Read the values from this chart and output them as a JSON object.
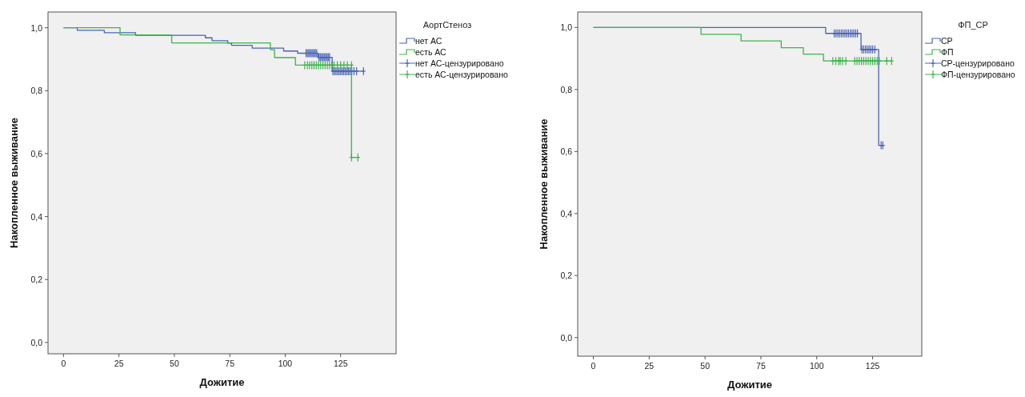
{
  "chart_data": [
    {
      "type": "step",
      "xlabel": "Дожитие",
      "ylabel": "Накопленное выживание",
      "legend_title": "АортСтеноз",
      "legend": "right",
      "grid": false,
      "line_style": "solid",
      "xlim": [
        -7,
        150
      ],
      "ylim": [
        -0.036,
        1.05
      ],
      "xticks": [
        0,
        25,
        50,
        75,
        100,
        125
      ],
      "yticks": [
        {
          "value": 0,
          "label": "0,0"
        },
        {
          "value": 0.2,
          "label": "0,2"
        },
        {
          "value": 0.4,
          "label": "0,4"
        },
        {
          "value": 0.6,
          "label": "0,6"
        },
        {
          "value": 0.8,
          "label": "0,8"
        },
        {
          "value": 1,
          "label": "1,0"
        }
      ],
      "series": [
        {
          "name": "нет АС",
          "type": "step",
          "color": "#4a63b5",
          "x": [
            0,
            6.2,
            18.4,
            32.5,
            64,
            67,
            74.1,
            75.8,
            85.1,
            99.3,
            105.6,
            114.8,
            121.2,
            135.3
          ],
          "values": [
            1,
            0.992,
            0.984,
            0.976,
            0.968,
            0.959,
            0.951,
            0.944,
            0.935,
            0.926,
            0.919,
            0.906,
            0.862,
            0.862
          ]
        },
        {
          "name": "есть АС",
          "type": "step",
          "color": "#3cb44b",
          "x": [
            0,
            25.5,
            48.8,
            93.3,
            95.2,
            104.6,
            129.9,
            132.8
          ],
          "values": [
            1,
            0.977,
            0.952,
            0.93,
            0.905,
            0.881,
            0.588,
            0.588
          ]
        },
        {
          "name": "нет АС-цензурировано",
          "type": "scatter",
          "marker": "cross",
          "color": "#4a63b5",
          "x": [
            109.4,
            110,
            110.6,
            111.2,
            111.8,
            112.4,
            113,
            113.6,
            114.2,
            115.2,
            115.8,
            116.4,
            117,
            117.6,
            118.2,
            118.8,
            119.4,
            120,
            121.5,
            122.2,
            122.9,
            123.6,
            124.3,
            125,
            125.7,
            126.4,
            127.1,
            127.8,
            128.5,
            129.2,
            130,
            131,
            132.2,
            135.3
          ],
          "values": [
            0.919,
            0.919,
            0.919,
            0.919,
            0.919,
            0.919,
            0.919,
            0.919,
            0.919,
            0.906,
            0.906,
            0.906,
            0.906,
            0.906,
            0.906,
            0.906,
            0.906,
            0.906,
            0.862,
            0.862,
            0.862,
            0.862,
            0.862,
            0.862,
            0.862,
            0.862,
            0.862,
            0.862,
            0.862,
            0.862,
            0.862,
            0.862,
            0.862,
            0.862
          ]
        },
        {
          "name": "есть АС-цензурировано",
          "type": "scatter",
          "marker": "cross",
          "color": "#3cb44b",
          "x": [
            108.8,
            110,
            111,
            112,
            113,
            114,
            115,
            116,
            117,
            118,
            119,
            120,
            121,
            122,
            123.5,
            125,
            126.5,
            128,
            129.9,
            129.9,
            132.8
          ],
          "values": [
            0.881,
            0.881,
            0.881,
            0.881,
            0.881,
            0.881,
            0.881,
            0.881,
            0.881,
            0.881,
            0.881,
            0.881,
            0.881,
            0.881,
            0.881,
            0.881,
            0.881,
            0.881,
            0.881,
            0.588,
            0.588
          ]
        }
      ]
    },
    {
      "type": "step",
      "xlabel": "Дожитие",
      "ylabel": "Накопленное выживание",
      "legend_title": "ФП_СР",
      "legend": "right",
      "grid": false,
      "line_style": "solid",
      "xlim": [
        -7,
        147
      ],
      "ylim": [
        -0.06,
        1.05
      ],
      "xticks": [
        0,
        25,
        50,
        75,
        100,
        125
      ],
      "yticks": [
        {
          "value": 0,
          "label": "0,0"
        },
        {
          "value": 0.2,
          "label": "0,2"
        },
        {
          "value": 0.4,
          "label": "0,4"
        },
        {
          "value": 0.6,
          "label": "0,6"
        },
        {
          "value": 0.8,
          "label": "0,8"
        },
        {
          "value": 1,
          "label": "1,0"
        }
      ],
      "series": [
        {
          "name": "СР",
          "type": "step",
          "color": "#4a63b5",
          "x": [
            0,
            104,
            119.8,
            127.7,
            129.6
          ],
          "values": [
            1,
            0.981,
            0.929,
            0.62,
            0.62
          ]
        },
        {
          "name": "ФП",
          "type": "step",
          "color": "#3cb44b",
          "x": [
            0,
            48.2,
            66.1,
            84.1,
            94,
            103,
            133.5
          ],
          "values": [
            1,
            0.978,
            0.957,
            0.935,
            0.914,
            0.892,
            0.892
          ]
        },
        {
          "name": "СР-цензурировано",
          "type": "scatter",
          "marker": "cross",
          "color": "#4a63b5",
          "x": [
            107.8,
            108.6,
            109.4,
            110.2,
            111,
            111.8,
            112.6,
            113.4,
            114.2,
            115,
            115.8,
            116.6,
            117.4,
            118.2,
            120.2,
            121,
            121.8,
            122.6,
            123.4,
            124.2,
            125,
            126,
            128.8,
            129.6
          ],
          "values": [
            0.981,
            0.981,
            0.981,
            0.981,
            0.981,
            0.981,
            0.981,
            0.981,
            0.981,
            0.981,
            0.981,
            0.981,
            0.981,
            0.981,
            0.929,
            0.929,
            0.929,
            0.929,
            0.929,
            0.929,
            0.929,
            0.929,
            0.62,
            0.62
          ]
        },
        {
          "name": "ФП-цензурировано",
          "type": "scatter",
          "marker": "cross",
          "color": "#3cb44b",
          "x": [
            107.2,
            108.5,
            109.8,
            110.5,
            111.5,
            113,
            117,
            118,
            119,
            120,
            121,
            122,
            123,
            124,
            125,
            126,
            127,
            128,
            131.3,
            133.5
          ],
          "values": [
            0.892,
            0.892,
            0.892,
            0.892,
            0.892,
            0.892,
            0.892,
            0.892,
            0.892,
            0.892,
            0.892,
            0.892,
            0.892,
            0.892,
            0.892,
            0.892,
            0.892,
            0.892,
            0.892,
            0.892
          ]
        }
      ]
    }
  ]
}
